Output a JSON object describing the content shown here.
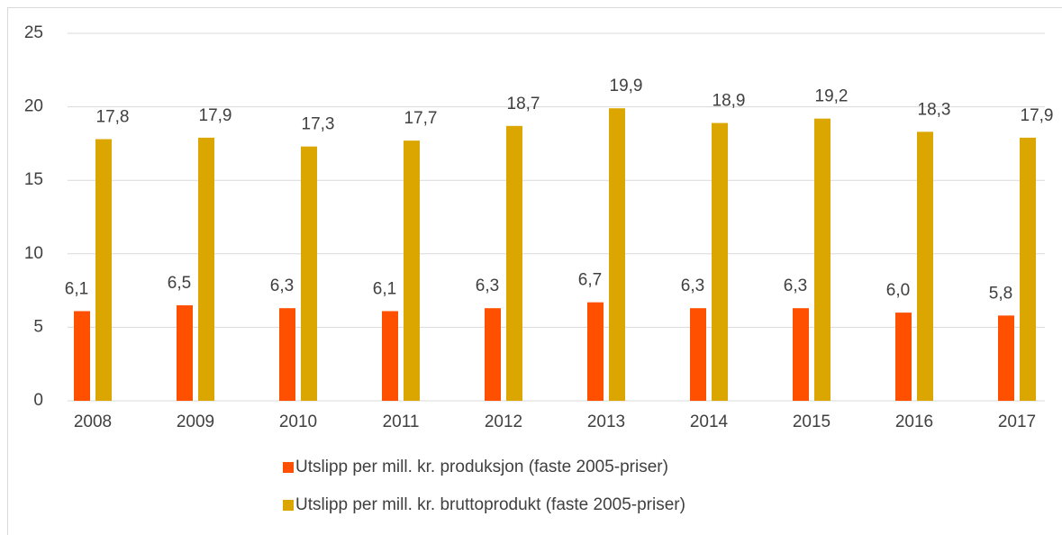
{
  "chart_data": {
    "type": "bar",
    "categories": [
      "2008",
      "2009",
      "2010",
      "2011",
      "2012",
      "2013",
      "2014",
      "2015",
      "2016",
      "2017"
    ],
    "series": [
      {
        "name": "Utslipp per mill. kr. produksjon (faste 2005-priser)",
        "color": "#ff5000",
        "values": [
          6.1,
          6.5,
          6.3,
          6.1,
          6.3,
          6.7,
          6.3,
          6.3,
          6.0,
          5.8
        ],
        "value_labels": [
          "6,1",
          "6,5",
          "6,3",
          "6,1",
          "6,3",
          "6,7",
          "6,3",
          "6,3",
          "6,0",
          "5,8"
        ]
      },
      {
        "name": "Utslipp per mill. kr. bruttoprodukt (faste 2005-priser)",
        "color": "#dca600",
        "values": [
          17.8,
          17.9,
          17.3,
          17.7,
          18.7,
          19.9,
          18.9,
          19.2,
          18.3,
          17.9
        ],
        "value_labels": [
          "17,8",
          "17,9",
          "17,3",
          "17,7",
          "18,7",
          "19,9",
          "18,9",
          "19,2",
          "18,3",
          "17,9"
        ]
      }
    ],
    "ylim": [
      0,
      25
    ],
    "yticks": [
      0,
      5,
      10,
      15,
      20,
      25
    ],
    "grid": true,
    "legend": "bottom"
  }
}
